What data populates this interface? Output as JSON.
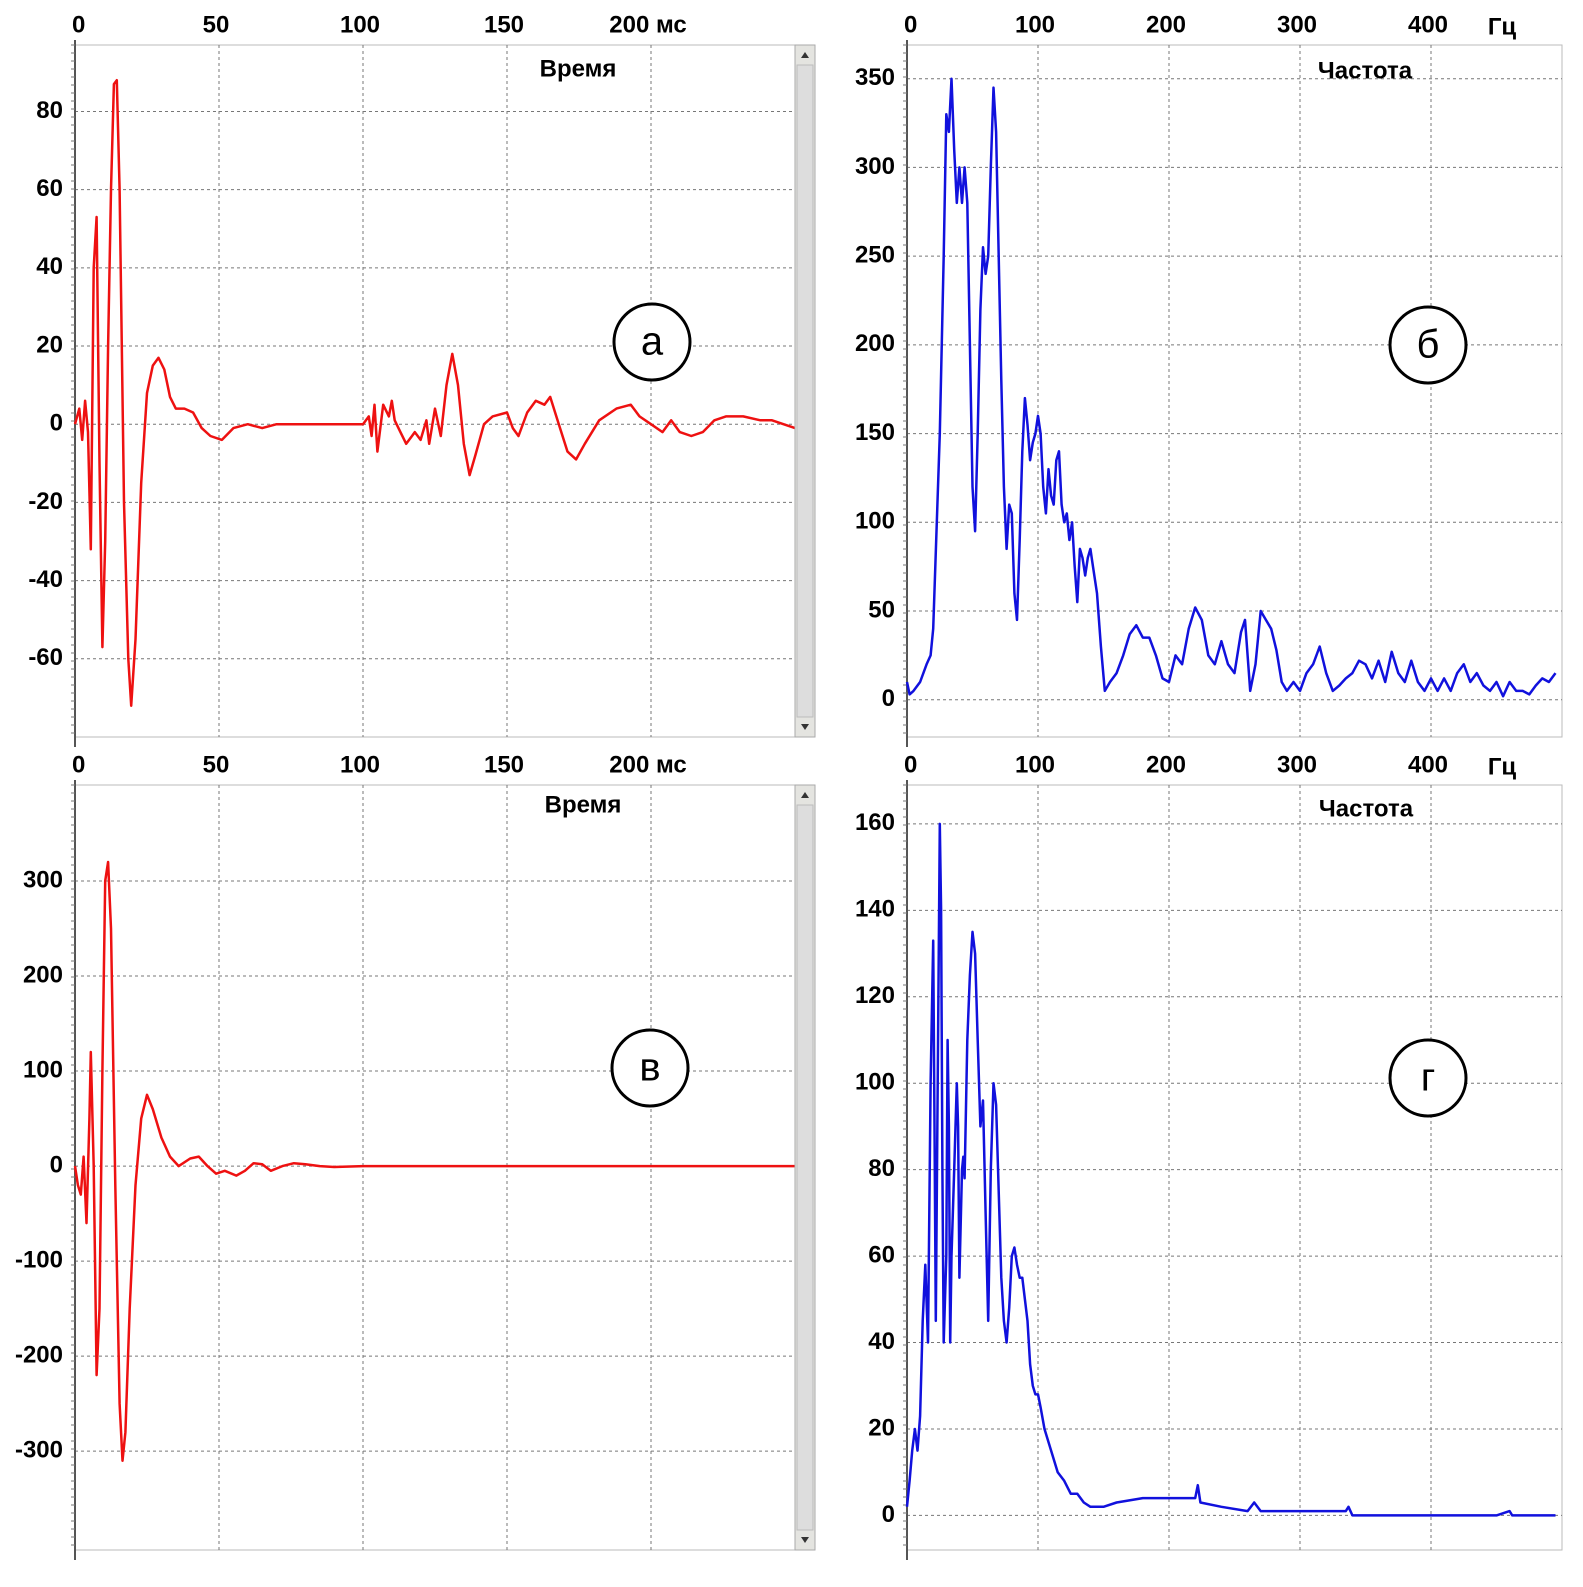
{
  "chart_data": [
    {
      "type": "line",
      "title": "Время",
      "annotation": "а",
      "color": "#ee1111",
      "grid": true,
      "xlim": [
        0,
        250
      ],
      "xticks": [
        0,
        50,
        100,
        150,
        {
          "value": 200,
          "label": "200 мс"
        }
      ],
      "ylim": [
        -80,
        97
      ],
      "yticks": [
        -60,
        -40,
        -20,
        0,
        20,
        40,
        60,
        80
      ],
      "x": [
        0,
        1.5,
        2.5,
        3.5,
        4.5,
        5.5,
        6.5,
        7.5,
        8.5,
        9.5,
        10.5,
        11.5,
        12.5,
        13.5,
        14.5,
        15.5,
        17,
        18.5,
        19.5,
        21,
        23,
        25,
        27,
        29,
        31,
        33,
        35,
        38,
        41,
        44,
        47,
        51,
        55,
        60,
        65,
        70,
        80,
        90,
        100,
        102,
        103,
        104,
        105,
        107,
        109,
        110,
        111,
        113,
        115,
        117,
        118,
        120,
        122,
        123,
        125,
        127,
        129,
        131,
        133,
        135,
        137,
        139,
        142,
        145,
        150,
        152,
        154,
        157,
        160,
        163,
        165,
        168,
        171,
        174,
        177,
        182,
        188,
        193,
        196,
        200,
        204,
        207,
        210,
        214,
        218,
        222,
        226,
        232,
        238,
        242,
        246,
        250
      ],
      "values": [
        0,
        4,
        -4,
        6,
        -2,
        -32,
        40,
        53,
        -10,
        -57,
        -30,
        20,
        60,
        87,
        88,
        60,
        -20,
        -60,
        -72,
        -55,
        -15,
        8,
        15,
        17,
        14,
        7,
        4,
        4,
        3,
        -1,
        -3,
        -4,
        -1,
        0,
        -1,
        0,
        0,
        0,
        0,
        2,
        -3,
        5,
        -7,
        5,
        2,
        6,
        1,
        -2,
        -5,
        -3,
        -2,
        -4,
        1,
        -5,
        4,
        -3,
        10,
        18,
        10,
        -5,
        -13,
        -8,
        0,
        2,
        3,
        -1,
        -3,
        3,
        6,
        5,
        7,
        0,
        -7,
        -9,
        -5,
        1,
        4,
        5,
        2,
        0,
        -2,
        1,
        -2,
        -3,
        -2,
        1,
        2,
        2,
        1,
        1,
        0,
        -1
      ]
    },
    {
      "type": "line",
      "title": "Частота",
      "annotation": "б",
      "color": "#1111dd",
      "grid": true,
      "xlabel": "Гц",
      "xlim": [
        0,
        500
      ],
      "xticks": [
        0,
        100,
        200,
        300,
        400
      ],
      "ylim": [
        -21,
        369
      ],
      "yticks": [
        0,
        50,
        100,
        150,
        200,
        250,
        300,
        350
      ],
      "x": [
        0,
        2,
        5,
        10,
        15,
        18,
        20,
        25,
        28,
        30,
        32,
        34,
        36,
        38,
        40,
        42,
        44,
        46,
        48,
        50,
        52,
        54,
        56,
        58,
        60,
        62,
        64,
        66,
        68,
        70,
        72,
        74,
        76,
        78,
        80,
        82,
        84,
        86,
        88,
        90,
        92,
        94,
        96,
        98,
        100,
        102,
        104,
        106,
        108,
        110,
        112,
        114,
        116,
        118,
        120,
        122,
        124,
        126,
        128,
        130,
        132,
        134,
        136,
        138,
        140,
        142,
        145,
        148,
        151,
        155,
        160,
        165,
        170,
        175,
        180,
        185,
        190,
        195,
        200,
        205,
        210,
        215,
        220,
        225,
        230,
        235,
        240,
        245,
        250,
        255,
        258,
        262,
        266,
        270,
        274,
        278,
        282,
        286,
        290,
        295,
        300,
        305,
        310,
        315,
        320,
        325,
        330,
        335,
        340,
        345,
        350,
        355,
        360,
        365,
        370,
        375,
        380,
        385,
        390,
        395,
        400,
        405,
        410,
        415,
        420,
        425,
        430,
        435,
        440,
        445,
        450,
        455,
        460,
        465,
        470,
        475,
        480,
        485,
        490,
        495
      ],
      "values": [
        10,
        3,
        5,
        10,
        20,
        25,
        40,
        150,
        250,
        330,
        320,
        350,
        310,
        280,
        300,
        280,
        300,
        280,
        200,
        120,
        95,
        150,
        220,
        255,
        240,
        250,
        300,
        345,
        320,
        250,
        180,
        120,
        85,
        110,
        105,
        60,
        45,
        90,
        140,
        170,
        155,
        135,
        145,
        150,
        160,
        150,
        120,
        105,
        130,
        115,
        110,
        135,
        140,
        110,
        100,
        105,
        90,
        100,
        75,
        55,
        85,
        80,
        70,
        80,
        85,
        75,
        60,
        30,
        5,
        10,
        15,
        25,
        37,
        42,
        35,
        35,
        25,
        12,
        10,
        25,
        20,
        40,
        52,
        45,
        25,
        20,
        33,
        20,
        15,
        38,
        45,
        5,
        20,
        50,
        45,
        40,
        28,
        10,
        5,
        10,
        5,
        15,
        20,
        30,
        15,
        5,
        8,
        12,
        15,
        22,
        20,
        12,
        22,
        10,
        27,
        15,
        10,
        22,
        10,
        5,
        12,
        5,
        12,
        5,
        15,
        20,
        10,
        15,
        8,
        5,
        10,
        2,
        10,
        5,
        5,
        3,
        8,
        12,
        10,
        15
      ]
    },
    {
      "type": "line",
      "title": "Время",
      "annotation": "в",
      "color": "#ee1111",
      "grid": true,
      "xlim": [
        0,
        250
      ],
      "xticks": [
        0,
        50,
        100,
        150,
        {
          "value": 200,
          "label": "200 мс"
        }
      ],
      "ylim": [
        -404,
        401
      ],
      "yticks": [
        -300,
        -200,
        -100,
        0,
        100,
        200,
        300
      ],
      "x": [
        0,
        1,
        2,
        3,
        4,
        5,
        5.5,
        6.5,
        7.5,
        8.5,
        9.5,
        10.5,
        11.5,
        12.5,
        14,
        15.5,
        16.5,
        17.5,
        19,
        21,
        23,
        25,
        27,
        30,
        33,
        36,
        40,
        43,
        46,
        49,
        52,
        56,
        59,
        62,
        65,
        68,
        72,
        76,
        80,
        85,
        90,
        100,
        120,
        140,
        160,
        180,
        200,
        220,
        250
      ],
      "values": [
        0,
        -20,
        -30,
        10,
        -60,
        50,
        120,
        0,
        -220,
        -150,
        100,
        300,
        320,
        250,
        -20,
        -250,
        -310,
        -280,
        -150,
        -20,
        50,
        75,
        60,
        30,
        10,
        0,
        8,
        10,
        0,
        -8,
        -5,
        -10,
        -5,
        3,
        2,
        -5,
        0,
        3,
        2,
        0,
        -1,
        0,
        0,
        0,
        0,
        0,
        0,
        0,
        0
      ]
    },
    {
      "type": "line",
      "title": "Частота",
      "annotation": "г",
      "color": "#1111dd",
      "grid": true,
      "xlabel": "Гц",
      "xlim": [
        0,
        500
      ],
      "xticks": [
        0,
        100,
        200,
        300,
        400
      ],
      "ylim": [
        -8,
        169
      ],
      "yticks": [
        0,
        20,
        40,
        60,
        80,
        100,
        120,
        140,
        160
      ],
      "x": [
        0,
        2,
        4,
        6,
        8,
        10,
        12,
        14,
        16,
        18,
        20,
        21,
        22,
        24,
        25,
        26,
        27,
        28,
        30,
        31,
        32,
        33,
        34,
        36,
        38,
        39,
        40,
        42,
        43,
        44,
        46,
        48,
        50,
        52,
        54,
        56,
        58,
        60,
        62,
        64,
        66,
        68,
        70,
        72,
        74,
        76,
        78,
        80,
        82,
        84,
        86,
        88,
        90,
        92,
        94,
        96,
        98,
        100,
        102,
        105,
        110,
        115,
        120,
        125,
        130,
        135,
        140,
        150,
        160,
        180,
        200,
        220,
        222,
        224,
        240,
        260,
        265,
        270,
        300,
        335,
        337,
        340,
        400,
        450,
        460,
        462,
        495
      ],
      "values": [
        2,
        8,
        15,
        20,
        15,
        23,
        45,
        58,
        40,
        100,
        133,
        90,
        45,
        120,
        160,
        140,
        80,
        40,
        60,
        110,
        90,
        40,
        60,
        80,
        100,
        90,
        55,
        80,
        83,
        78,
        110,
        125,
        135,
        130,
        110,
        90,
        96,
        70,
        45,
        80,
        100,
        95,
        75,
        55,
        45,
        40,
        48,
        60,
        62,
        58,
        55,
        55,
        50,
        45,
        35,
        30,
        28,
        28,
        25,
        20,
        15,
        10,
        8,
        5,
        5,
        3,
        2,
        2,
        3,
        4,
        4,
        4,
        7,
        3,
        2,
        1,
        3,
        1,
        1,
        1,
        2,
        0,
        0,
        0,
        1,
        0,
        0
      ]
    }
  ]
}
